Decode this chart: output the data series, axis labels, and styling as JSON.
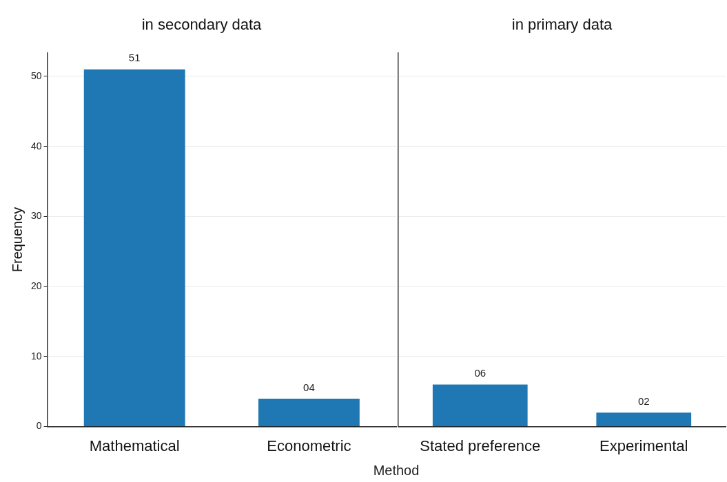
{
  "chart_data": [
    {
      "type": "bar",
      "title": "in secondary data",
      "xlabel": "Method",
      "ylabel": "Frequency",
      "categories": [
        "Mathematical",
        "Econometric"
      ],
      "values": [
        51,
        4
      ],
      "value_labels": [
        "51",
        "04"
      ],
      "color": "#1f77b4",
      "ylim": [
        0,
        53.4
      ],
      "yticks": [
        0,
        10,
        20,
        30,
        40,
        50
      ],
      "grid": "y"
    },
    {
      "type": "bar",
      "title": "in primary data",
      "categories": [
        "Stated preference",
        "Experimental"
      ],
      "values": [
        6,
        2
      ],
      "value_labels": [
        "06",
        "02"
      ],
      "color": "#1f77b4",
      "ylim": [
        0,
        53.4
      ],
      "yticks": [
        0,
        10,
        20,
        30,
        40,
        50
      ],
      "grid": "y",
      "tick_labels": "x"
    }
  ]
}
